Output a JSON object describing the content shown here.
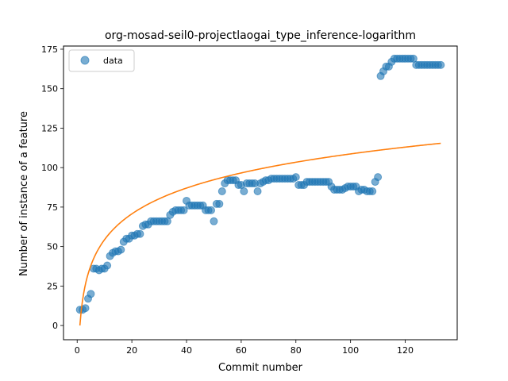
{
  "chart_data": {
    "type": "scatter",
    "title": "org-mosad-seil0-projectlaogai_type_inference-logarithm",
    "xlabel": "Commit number",
    "ylabel": "Number of instance of a feature",
    "xlim": [
      -5,
      139
    ],
    "ylim": [
      -9,
      177
    ],
    "xticks": [
      0,
      20,
      40,
      60,
      80,
      100,
      120
    ],
    "yticks": [
      0,
      25,
      50,
      75,
      100,
      125,
      150,
      175
    ],
    "x_tick_labels": [
      "0",
      "20",
      "40",
      "60",
      "80",
      "100",
      "120"
    ],
    "y_tick_labels": [
      "0",
      "25",
      "50",
      "75",
      "100",
      "125",
      "150",
      "175"
    ],
    "legend": {
      "position": "upper-left",
      "entries": [
        {
          "label": "data",
          "marker": "circle",
          "color": "#1f77b4"
        }
      ]
    },
    "series": [
      {
        "name": "data",
        "kind": "scatter",
        "color": "#1f77b4",
        "points": [
          [
            1,
            10
          ],
          [
            2,
            10
          ],
          [
            3,
            11
          ],
          [
            4,
            17
          ],
          [
            5,
            20
          ],
          [
            6,
            36
          ],
          [
            7,
            36
          ],
          [
            8,
            35
          ],
          [
            9,
            36
          ],
          [
            10,
            36
          ],
          [
            11,
            38
          ],
          [
            12,
            44
          ],
          [
            13,
            46
          ],
          [
            14,
            47
          ],
          [
            15,
            47
          ],
          [
            16,
            48
          ],
          [
            17,
            53
          ],
          [
            18,
            55
          ],
          [
            19,
            55
          ],
          [
            20,
            57
          ],
          [
            21,
            57
          ],
          [
            22,
            58
          ],
          [
            23,
            58
          ],
          [
            24,
            63
          ],
          [
            25,
            64
          ],
          [
            26,
            64
          ],
          [
            27,
            66
          ],
          [
            28,
            66
          ],
          [
            29,
            66
          ],
          [
            30,
            66
          ],
          [
            31,
            66
          ],
          [
            32,
            66
          ],
          [
            33,
            66
          ],
          [
            34,
            70
          ],
          [
            35,
            72
          ],
          [
            36,
            73
          ],
          [
            37,
            73
          ],
          [
            38,
            73
          ],
          [
            39,
            73
          ],
          [
            40,
            79
          ],
          [
            41,
            76
          ],
          [
            42,
            76
          ],
          [
            43,
            76
          ],
          [
            44,
            76
          ],
          [
            45,
            76
          ],
          [
            46,
            76
          ],
          [
            47,
            73
          ],
          [
            48,
            73
          ],
          [
            49,
            73
          ],
          [
            50,
            66
          ],
          [
            51,
            77
          ],
          [
            52,
            77
          ],
          [
            53,
            85
          ],
          [
            54,
            90
          ],
          [
            55,
            92
          ],
          [
            56,
            92
          ],
          [
            57,
            92
          ],
          [
            58,
            92
          ],
          [
            59,
            89
          ],
          [
            60,
            89
          ],
          [
            61,
            85
          ],
          [
            62,
            90
          ],
          [
            63,
            90
          ],
          [
            64,
            90
          ],
          [
            65,
            90
          ],
          [
            66,
            85
          ],
          [
            67,
            90
          ],
          [
            68,
            91
          ],
          [
            69,
            92
          ],
          [
            70,
            92
          ],
          [
            71,
            93
          ],
          [
            72,
            93
          ],
          [
            73,
            93
          ],
          [
            74,
            93
          ],
          [
            75,
            93
          ],
          [
            76,
            93
          ],
          [
            77,
            93
          ],
          [
            78,
            93
          ],
          [
            79,
            93
          ],
          [
            80,
            94
          ],
          [
            81,
            89
          ],
          [
            82,
            89
          ],
          [
            83,
            89
          ],
          [
            84,
            91
          ],
          [
            85,
            91
          ],
          [
            86,
            91
          ],
          [
            87,
            91
          ],
          [
            88,
            91
          ],
          [
            89,
            91
          ],
          [
            90,
            91
          ],
          [
            91,
            91
          ],
          [
            92,
            91
          ],
          [
            93,
            88
          ],
          [
            94,
            86
          ],
          [
            95,
            86
          ],
          [
            96,
            86
          ],
          [
            97,
            86
          ],
          [
            98,
            87
          ],
          [
            99,
            88
          ],
          [
            100,
            88
          ],
          [
            101,
            88
          ],
          [
            102,
            88
          ],
          [
            103,
            85
          ],
          [
            104,
            86
          ],
          [
            105,
            86
          ],
          [
            106,
            85
          ],
          [
            107,
            85
          ],
          [
            108,
            85
          ],
          [
            109,
            91
          ],
          [
            110,
            94
          ],
          [
            111,
            158
          ],
          [
            112,
            161
          ],
          [
            113,
            164
          ],
          [
            114,
            164
          ],
          [
            115,
            167
          ],
          [
            116,
            169
          ],
          [
            117,
            169
          ],
          [
            118,
            169
          ],
          [
            119,
            169
          ],
          [
            120,
            169
          ],
          [
            121,
            169
          ],
          [
            122,
            169
          ],
          [
            123,
            169
          ],
          [
            124,
            165
          ],
          [
            125,
            165
          ],
          [
            126,
            165
          ],
          [
            127,
            165
          ],
          [
            128,
            165
          ],
          [
            129,
            165
          ],
          [
            130,
            165
          ],
          [
            131,
            165
          ],
          [
            132,
            165
          ],
          [
            133,
            165
          ]
        ]
      },
      {
        "name": "",
        "kind": "line",
        "color": "#ff7f0e",
        "formula": "y = 23.6 * ln(x)",
        "coef": 23.6,
        "x_range": [
          1,
          133
        ]
      }
    ]
  }
}
